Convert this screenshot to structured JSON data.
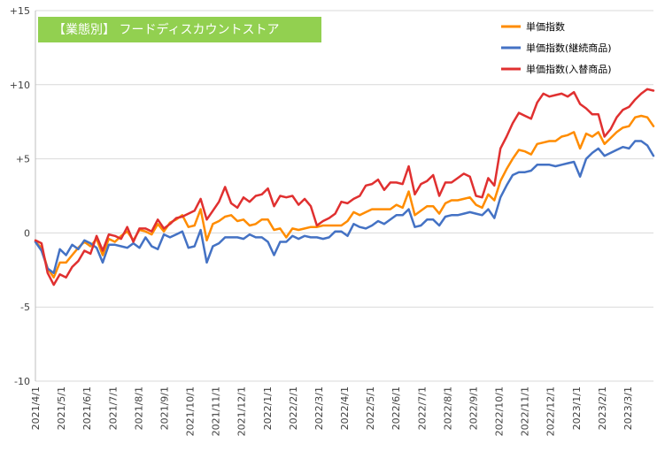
{
  "chart_data": {
    "type": "line",
    "title": "【業態別】 フードディスカウントストア",
    "ylim": [
      -10,
      15
    ],
    "yticks": [
      "-10",
      "-5",
      "0",
      "+5",
      "+10",
      "+15"
    ],
    "ytick_values": [
      -10,
      -5,
      0,
      5,
      10,
      15
    ],
    "grid": "horizontal",
    "legend": "top-right",
    "x_tick_labels": [
      "2021/4/1",
      "2021/5/1",
      "2021/6/1",
      "2021/7/1",
      "2021/8/1",
      "2021/9/1",
      "2021/10/1",
      "2021/11/1",
      "2021/12/1",
      "2022/1/1",
      "2022/2/1",
      "2022/3/1",
      "2022/4/1",
      "2022/5/1",
      "2022/6/1",
      "2022/7/1",
      "2022/8/1",
      "2022/9/1",
      "2022/10/1",
      "2022/11/1",
      "2022/12/1",
      "2023/1/1",
      "2023/2/1",
      "2023/3/1"
    ],
    "series": [
      {
        "name": "単価指数",
        "color": "#ff8c00",
        "values": [
          -0.6,
          -1.0,
          -2.4,
          -3.0,
          -2.0,
          -2.0,
          -1.5,
          -1.0,
          -0.6,
          -0.9,
          -0.4,
          -1.5,
          -0.4,
          -0.6,
          -0.2,
          0.1,
          -0.5,
          0.2,
          0.1,
          -0.1,
          0.6,
          0.1,
          0.7,
          0.9,
          1.2,
          0.4,
          0.5,
          1.6,
          -0.5,
          0.6,
          0.8,
          1.1,
          1.2,
          0.8,
          0.9,
          0.5,
          0.6,
          0.9,
          0.9,
          0.2,
          0.3,
          -0.3,
          0.3,
          0.2,
          0.3,
          0.4,
          0.4,
          0.5,
          0.5,
          0.5,
          0.5,
          0.8,
          1.4,
          1.2,
          1.4,
          1.6,
          1.6,
          1.6,
          1.6,
          1.9,
          1.7,
          2.8,
          1.2,
          1.5,
          1.8,
          1.8,
          1.3,
          2.0,
          2.2,
          2.2,
          2.3,
          2.4,
          1.9,
          1.7,
          2.6,
          2.2,
          3.5,
          4.3,
          5.0,
          5.6,
          5.5,
          5.3,
          6.0,
          6.1,
          6.2,
          6.2,
          6.5,
          6.6,
          6.8,
          5.7,
          6.7,
          6.5,
          6.8,
          6.0,
          6.4,
          6.8,
          7.1,
          7.2,
          7.8,
          7.9,
          7.8,
          7.2
        ]
      },
      {
        "name": "単価指数(継続商品)",
        "color": "#4472c4",
        "values": [
          -0.6,
          -1.2,
          -2.4,
          -2.7,
          -1.1,
          -1.5,
          -0.8,
          -1.1,
          -0.5,
          -0.7,
          -1.0,
          -2.0,
          -0.8,
          -0.8,
          -0.9,
          -1.0,
          -0.7,
          -1.0,
          -0.3,
          -0.9,
          -1.1,
          -0.1,
          -0.3,
          -0.1,
          0.1,
          -1.0,
          -0.9,
          0.2,
          -2.0,
          -0.9,
          -0.7,
          -0.3,
          -0.3,
          -0.3,
          -0.4,
          -0.1,
          -0.3,
          -0.3,
          -0.6,
          -1.5,
          -0.6,
          -0.6,
          -0.2,
          -0.4,
          -0.2,
          -0.3,
          -0.3,
          -0.4,
          -0.3,
          0.1,
          0.1,
          -0.2,
          0.6,
          0.4,
          0.3,
          0.5,
          0.8,
          0.6,
          0.9,
          1.2,
          1.2,
          1.6,
          0.4,
          0.5,
          0.9,
          0.9,
          0.5,
          1.1,
          1.2,
          1.2,
          1.3,
          1.4,
          1.3,
          1.2,
          1.6,
          1.0,
          2.4,
          3.2,
          3.9,
          4.1,
          4.1,
          4.2,
          4.6,
          4.6,
          4.6,
          4.5,
          4.6,
          4.7,
          4.8,
          3.8,
          5.0,
          5.4,
          5.7,
          5.2,
          5.4,
          5.6,
          5.8,
          5.7,
          6.2,
          6.2,
          5.9,
          5.2
        ]
      },
      {
        "name": "単価指数(入替商品)",
        "color": "#e03030",
        "values": [
          -0.5,
          -0.7,
          -2.7,
          -3.5,
          -2.8,
          -3.0,
          -2.3,
          -1.9,
          -1.2,
          -1.4,
          -0.2,
          -1.2,
          -0.1,
          -0.2,
          -0.4,
          0.4,
          -0.6,
          0.3,
          0.3,
          0.1,
          0.9,
          0.3,
          0.6,
          1.0,
          1.1,
          1.3,
          1.5,
          2.3,
          0.9,
          1.5,
          2.1,
          3.1,
          2.0,
          1.7,
          2.4,
          2.1,
          2.5,
          2.6,
          3.0,
          1.8,
          2.5,
          2.4,
          2.5,
          1.9,
          2.3,
          1.8,
          0.5,
          0.8,
          1.0,
          1.3,
          2.1,
          2.0,
          2.3,
          2.5,
          3.2,
          3.3,
          3.6,
          2.9,
          3.4,
          3.4,
          3.3,
          4.5,
          2.6,
          3.3,
          3.5,
          3.9,
          2.5,
          3.4,
          3.4,
          3.7,
          4.0,
          3.8,
          2.5,
          2.4,
          3.7,
          3.2,
          5.7,
          6.5,
          7.4,
          8.1,
          7.9,
          7.7,
          8.8,
          9.4,
          9.2,
          9.3,
          9.4,
          9.2,
          9.5,
          8.7,
          8.4,
          8.0,
          8.0,
          6.5,
          7.0,
          7.8,
          8.3,
          8.5,
          9.0,
          9.4,
          9.7,
          9.6
        ]
      }
    ]
  }
}
